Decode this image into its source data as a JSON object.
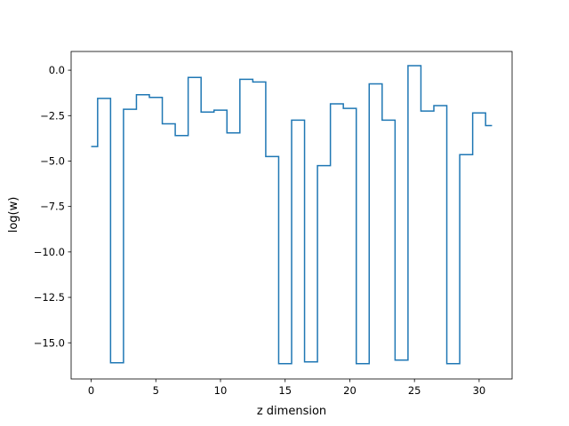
{
  "chart_data": {
    "type": "line",
    "drawstyle": "steps-mid",
    "xlabel": "z dimension",
    "ylabel": "log(w)",
    "xlim": [
      -1.55,
      32.55
    ],
    "ylim": [
      -16.99,
      1.03
    ],
    "xticks": [
      0,
      5,
      10,
      15,
      20,
      25,
      30
    ],
    "xtick_labels": [
      "0",
      "5",
      "10",
      "15",
      "20",
      "25",
      "30"
    ],
    "yticks": [
      0.0,
      -2.5,
      -5.0,
      -7.5,
      -10.0,
      -12.5,
      -15.0
    ],
    "ytick_labels": [
      "0.0",
      "−2.5",
      "−5.0",
      "−7.5",
      "−10.0",
      "−12.5",
      "−15.0"
    ],
    "grid": false,
    "line_color": "#1f77b4",
    "x": [
      0,
      1,
      2,
      3,
      4,
      5,
      6,
      7,
      8,
      9,
      10,
      11,
      12,
      13,
      14,
      15,
      16,
      17,
      18,
      19,
      20,
      21,
      22,
      23,
      24,
      25,
      26,
      27,
      28,
      29,
      30,
      31
    ],
    "series": [
      {
        "values": [
          -4.2,
          -1.55,
          -16.1,
          -2.15,
          -1.35,
          -1.5,
          -2.95,
          -3.6,
          -0.4,
          -2.3,
          -2.2,
          -3.45,
          -0.5,
          -0.65,
          -4.75,
          -16.15,
          -2.75,
          -16.05,
          -5.25,
          -1.85,
          -2.1,
          -16.15,
          -0.75,
          -2.75,
          -15.95,
          0.25,
          -2.25,
          -1.95,
          -16.15,
          -4.65,
          -2.35,
          -3.05
        ]
      }
    ]
  }
}
